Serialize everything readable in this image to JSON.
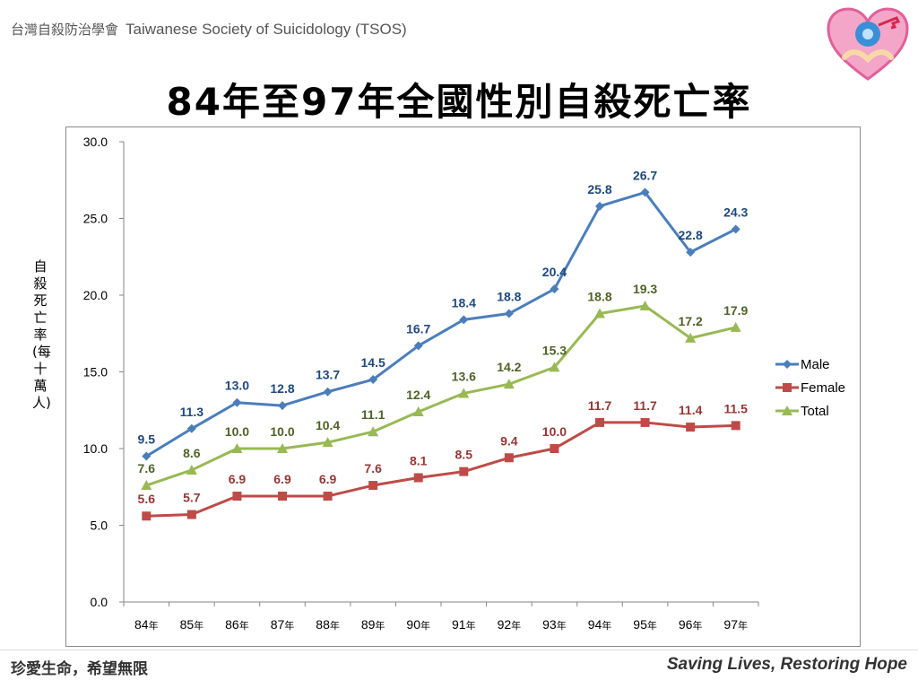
{
  "header": {
    "org_zh": "台灣自殺防治學會",
    "org_en": "Taiwanese Society of Suicidology (TSOS)"
  },
  "title": "84年至97年全國性別自殺死亡率",
  "footer": {
    "left": "珍愛生命，希望無限",
    "right": "Saving Lives, Restoring Hope"
  },
  "colors": {
    "male": "#4a7ebb",
    "female": "#be4b48",
    "total": "#98b954",
    "male_label": "#1f497d",
    "female_label": "#953735",
    "total_label": "#4f6228"
  },
  "chart_data": {
    "type": "line",
    "ylabel": "自殺死亡率(每十萬人)",
    "ylim": [
      0,
      30
    ],
    "yticks": [
      "0.0",
      "5.0",
      "10.0",
      "15.0",
      "20.0",
      "25.0",
      "30.0"
    ],
    "categories": [
      "84年",
      "85年",
      "86年",
      "87年",
      "88年",
      "89年",
      "90年",
      "91年",
      "92年",
      "93年",
      "94年",
      "95年",
      "96年",
      "97年"
    ],
    "category_labels": [
      {
        "num": "84",
        "unit": "年"
      },
      {
        "num": "85",
        "unit": "年"
      },
      {
        "num": "86",
        "unit": "年"
      },
      {
        "num": "87",
        "unit": "年"
      },
      {
        "num": "88",
        "unit": "年"
      },
      {
        "num": "89",
        "unit": "年"
      },
      {
        "num": "90",
        "unit": "年"
      },
      {
        "num": "91",
        "unit": "年"
      },
      {
        "num": "92",
        "unit": "年"
      },
      {
        "num": "93",
        "unit": "年"
      },
      {
        "num": "94",
        "unit": "年"
      },
      {
        "num": "95",
        "unit": "年"
      },
      {
        "num": "96",
        "unit": "年"
      },
      {
        "num": "97",
        "unit": "年"
      }
    ],
    "legend_position": "right",
    "grid": false,
    "series": [
      {
        "name": "Male",
        "marker": "diamond",
        "values": [
          9.5,
          11.3,
          13.0,
          12.8,
          13.7,
          14.5,
          16.7,
          18.4,
          18.8,
          20.4,
          25.8,
          26.7,
          22.8,
          24.3
        ],
        "labels": [
          "9.5",
          "11.3",
          "13.0",
          "12.8",
          "13.7",
          "14.5",
          "16.7",
          "18.4",
          "18.8",
          "20.4",
          "25.8",
          "26.7",
          "22.8",
          "24.3"
        ]
      },
      {
        "name": "Female",
        "marker": "square",
        "values": [
          5.6,
          5.7,
          6.9,
          6.9,
          6.9,
          7.6,
          8.1,
          8.5,
          9.4,
          10.0,
          11.7,
          11.7,
          11.4,
          11.5
        ],
        "labels": [
          "5.6",
          "5.7",
          "6.9",
          "6.9",
          "6.9",
          "7.6",
          "8.1",
          "8.5",
          "9.4",
          "10.0",
          "11.7",
          "11.7",
          "11.4",
          "11.5"
        ]
      },
      {
        "name": "Total",
        "marker": "triangle",
        "values": [
          7.6,
          8.6,
          10.0,
          10.0,
          10.4,
          11.1,
          12.4,
          13.6,
          14.2,
          15.3,
          18.8,
          19.3,
          17.2,
          17.9
        ],
        "labels": [
          "7.6",
          "8.6",
          "10.0",
          "10.0",
          "10.4",
          "11.1",
          "12.4",
          "13.6",
          "14.2",
          "15.3",
          "18.8",
          "19.3",
          "17.2",
          "17.9"
        ]
      }
    ]
  }
}
